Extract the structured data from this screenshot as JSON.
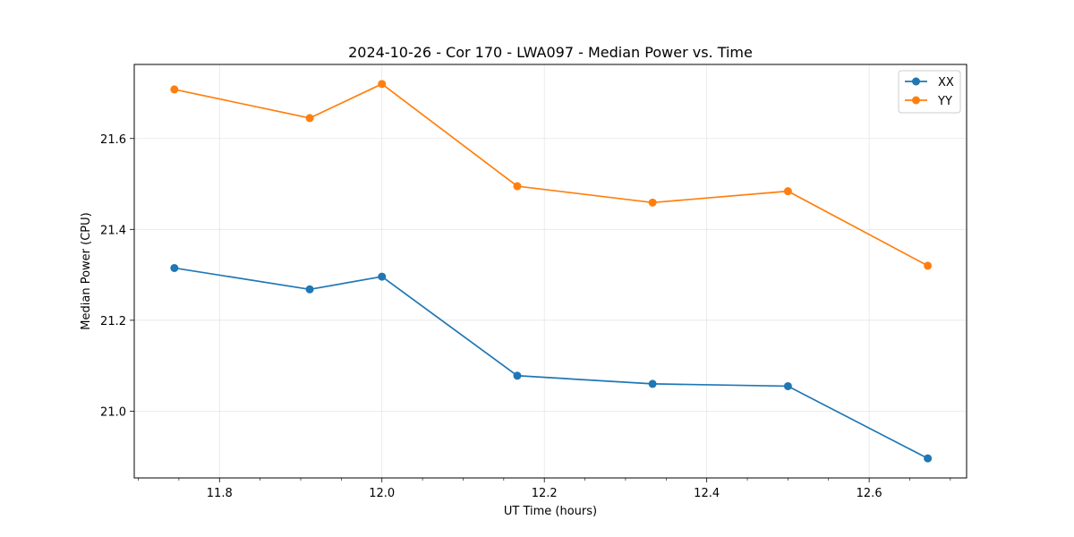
{
  "chart_data": {
    "type": "line",
    "title": "2024-10-26 - Cor 170 - LWA097 - Median Power vs. Time",
    "xlabel": "UT Time (hours)",
    "ylabel": "Median Power (CPU)",
    "xlim": [
      11.695,
      12.72
    ],
    "ylim": [
      20.853,
      21.763
    ],
    "xticks": [
      11.8,
      12.0,
      12.2,
      12.4,
      12.6
    ],
    "xtick_labels": [
      "11.8",
      "12.0",
      "12.2",
      "12.4",
      "12.6"
    ],
    "yticks": [
      21.0,
      21.2,
      21.4,
      21.6
    ],
    "ytick_labels": [
      "21.0",
      "21.2",
      "21.4",
      "21.6"
    ],
    "grid": true,
    "legend_position": "top-right",
    "x": [
      11.7444,
      11.9111,
      12.0,
      12.1667,
      12.3333,
      12.5,
      12.6722
    ],
    "series": [
      {
        "name": "XX",
        "color": "#1f77b4",
        "values": [
          21.315,
          21.268,
          21.296,
          21.078,
          21.06,
          21.055,
          20.896
        ]
      },
      {
        "name": "YY",
        "color": "#ff7f0e",
        "values": [
          21.708,
          21.645,
          21.72,
          21.495,
          21.459,
          21.484,
          21.32
        ]
      }
    ]
  }
}
